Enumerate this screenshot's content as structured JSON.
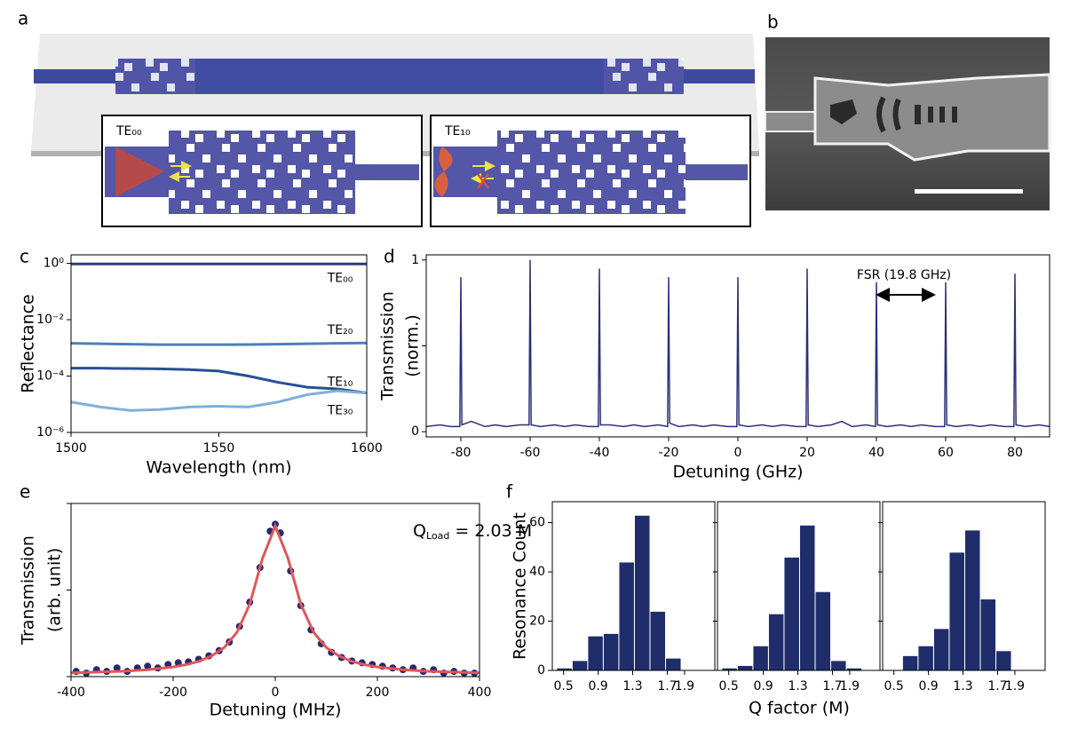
{
  "figure": {
    "panel_labels": [
      "a",
      "b",
      "c",
      "d",
      "e",
      "f"
    ],
    "insets": [
      "TE₀₀",
      "TE₁₀"
    ]
  },
  "chart_data": [
    {
      "type": "line",
      "xlabel": "Wavelength (nm)",
      "ylabel": "Reflectance",
      "log_y": true,
      "xlim": [
        1500,
        1600
      ],
      "xticks": [
        1500,
        1550,
        1600
      ],
      "ylim": [
        1e-06,
        2
      ],
      "yticks": [
        {
          "value": 1,
          "label": "10⁰"
        },
        {
          "value": 0.01,
          "label": "10⁻²"
        },
        {
          "value": 0.0001,
          "label": "10⁻⁴"
        },
        {
          "value": 1e-06,
          "label": "10⁻⁶"
        }
      ],
      "x": [
        1500,
        1510,
        1520,
        1530,
        1540,
        1550,
        1560,
        1570,
        1580,
        1590,
        1600
      ],
      "series": [
        {
          "name": "TE₀₀",
          "color": "#2b3a7a",
          "values": [
            0.95,
            0.95,
            0.95,
            0.95,
            0.95,
            0.95,
            0.95,
            0.95,
            0.95,
            0.95,
            0.95
          ]
        },
        {
          "name": "TE₂₀",
          "color": "#4e7fb8",
          "values": [
            0.00145,
            0.0014,
            0.00135,
            0.0013,
            0.0013,
            0.0013,
            0.00132,
            0.00135,
            0.0014,
            0.00145,
            0.0015
          ]
        },
        {
          "name": "TE₁₀",
          "color": "#264f9a",
          "values": [
            0.00019,
            0.00019,
            0.000185,
            0.00018,
            0.00017,
            0.00015,
            0.0001,
            6e-05,
            4e-05,
            3.5e-05,
            2.5e-05
          ]
        },
        {
          "name": "TE₃₀",
          "color": "#7fb0d8",
          "values": [
            1.2e-05,
            8e-06,
            6e-06,
            6.5e-06,
            8e-06,
            8.5e-06,
            8e-06,
            1.2e-05,
            2.2e-05,
            3e-05,
            2.5e-05
          ]
        }
      ]
    },
    {
      "type": "line",
      "xlabel": "Detuning (GHz)",
      "ylabel": [
        "Transmission",
        "(norm.)"
      ],
      "xlim": [
        -90,
        90
      ],
      "xticks": [
        -80,
        -60,
        -40,
        -20,
        0,
        20,
        40,
        60,
        80
      ],
      "ylim": [
        -0.03,
        1.03
      ],
      "yticks": [
        0,
        1
      ],
      "yminorticks": [
        0.5
      ],
      "annotation": "FSR (19.8 GHz)",
      "x": [
        -90,
        -86,
        -83,
        -80.3,
        -80,
        -79.7,
        -77,
        -73,
        -70,
        -67,
        -63,
        -60.3,
        -60,
        -59.7,
        -57,
        -53,
        -50,
        -47,
        -43,
        -40.3,
        -40,
        -39.7,
        -37,
        -33,
        -30,
        -27,
        -23,
        -20.3,
        -20,
        -19.7,
        -17,
        -13,
        -10,
        -7,
        -3,
        -0.3,
        0,
        0.3,
        3,
        7,
        10,
        13,
        17,
        19.7,
        20,
        20.3,
        23,
        27,
        30,
        33,
        37,
        39.7,
        40,
        40.3,
        43,
        47,
        50,
        53,
        57,
        59.7,
        60,
        60.3,
        63,
        67,
        70,
        73,
        77,
        79.7,
        80,
        80.3,
        83,
        87,
        90
      ],
      "series": [
        {
          "color": "#2b2f7a",
          "values": [
            0.03,
            0.04,
            0.03,
            0.03,
            0.9,
            0.04,
            0.06,
            0.03,
            0.04,
            0.03,
            0.04,
            0.04,
            1.0,
            0.04,
            0.03,
            0.04,
            0.03,
            0.04,
            0.03,
            0.03,
            0.95,
            0.04,
            0.04,
            0.03,
            0.04,
            0.03,
            0.04,
            0.03,
            0.9,
            0.05,
            0.03,
            0.04,
            0.03,
            0.04,
            0.03,
            0.03,
            0.9,
            0.04,
            0.03,
            0.04,
            0.03,
            0.04,
            0.03,
            0.03,
            0.95,
            0.04,
            0.03,
            0.04,
            0.06,
            0.03,
            0.04,
            0.03,
            0.87,
            0.04,
            0.03,
            0.04,
            0.03,
            0.04,
            0.03,
            0.03,
            0.87,
            0.04,
            0.03,
            0.04,
            0.03,
            0.04,
            0.03,
            0.03,
            0.92,
            0.04,
            0.03,
            0.04,
            0.03
          ]
        }
      ]
    },
    {
      "type": "scatter",
      "xlabel": "Detuning (MHz)",
      "ylabel": [
        "Transmission",
        "(arb. unit)"
      ],
      "xlim": [
        -400,
        400
      ],
      "xticks": [
        -400,
        -200,
        0,
        200,
        400
      ],
      "ylim": [
        0,
        1
      ],
      "yminorticks": [
        0,
        0.5,
        1
      ],
      "annotation": {
        "main": "Q",
        "sub": "Load",
        "rest": " = 2.03 M"
      },
      "series": [
        {
          "style": "points",
          "color": "#262a6e",
          "x": [
            -390,
            -370,
            -350,
            -330,
            -310,
            -290,
            -270,
            -250,
            -230,
            -210,
            -190,
            -170,
            -150,
            -130,
            -110,
            -90,
            -70,
            -50,
            -30,
            -10,
            0,
            10,
            30,
            50,
            70,
            90,
            110,
            130,
            150,
            170,
            190,
            210,
            230,
            250,
            270,
            290,
            310,
            330,
            350,
            370,
            390
          ],
          "values": [
            0.03,
            0.02,
            0.04,
            0.03,
            0.05,
            0.03,
            0.05,
            0.06,
            0.05,
            0.07,
            0.08,
            0.085,
            0.1,
            0.12,
            0.15,
            0.2,
            0.29,
            0.43,
            0.63,
            0.84,
            0.88,
            0.83,
            0.61,
            0.41,
            0.27,
            0.19,
            0.14,
            0.11,
            0.09,
            0.08,
            0.07,
            0.06,
            0.05,
            0.04,
            0.05,
            0.03,
            0.04,
            0.02,
            0.03,
            0.02,
            0.02
          ]
        },
        {
          "style": "line",
          "color": "#e0575a",
          "x": [
            -400,
            -350,
            -300,
            -250,
            -200,
            -175,
            -150,
            -125,
            -100,
            -75,
            -50,
            -25,
            0,
            25,
            50,
            75,
            100,
            125,
            150,
            175,
            200,
            250,
            300,
            350,
            400
          ],
          "values": [
            0.022,
            0.026,
            0.031,
            0.04,
            0.056,
            0.069,
            0.088,
            0.119,
            0.168,
            0.256,
            0.418,
            0.683,
            0.87,
            0.683,
            0.418,
            0.256,
            0.168,
            0.119,
            0.088,
            0.069,
            0.056,
            0.04,
            0.031,
            0.026,
            0.022
          ]
        }
      ]
    },
    {
      "type": "histogram",
      "xlabel": "Q factor (M)",
      "ylabel": "Resonance Count",
      "color": "#1f2d6b",
      "xlim": [
        0.37,
        2.25
      ],
      "xticks": [
        0.5,
        0.9,
        1.3,
        1.7,
        1.9
      ],
      "ylim": [
        0,
        68.5
      ],
      "yticks": [
        0,
        20,
        40,
        60
      ],
      "series": [
        {
          "bins": [
            0.42,
            0.6,
            0.78,
            0.96,
            1.14,
            1.32,
            1.5,
            1.68,
            1.86
          ],
          "values": [
            1,
            4,
            14,
            15,
            44,
            63,
            24,
            5
          ]
        },
        {
          "bins": [
            0.42,
            0.6,
            0.78,
            0.96,
            1.14,
            1.32,
            1.5,
            1.68,
            1.86,
            2.04
          ],
          "values": [
            1,
            2,
            10,
            23,
            46,
            59,
            32,
            4,
            1
          ]
        },
        {
          "bins": [
            0.6,
            0.78,
            0.96,
            1.14,
            1.32,
            1.5,
            1.68,
            1.86
          ],
          "values": [
            6,
            10,
            17,
            48,
            57,
            29,
            8
          ]
        }
      ]
    }
  ]
}
